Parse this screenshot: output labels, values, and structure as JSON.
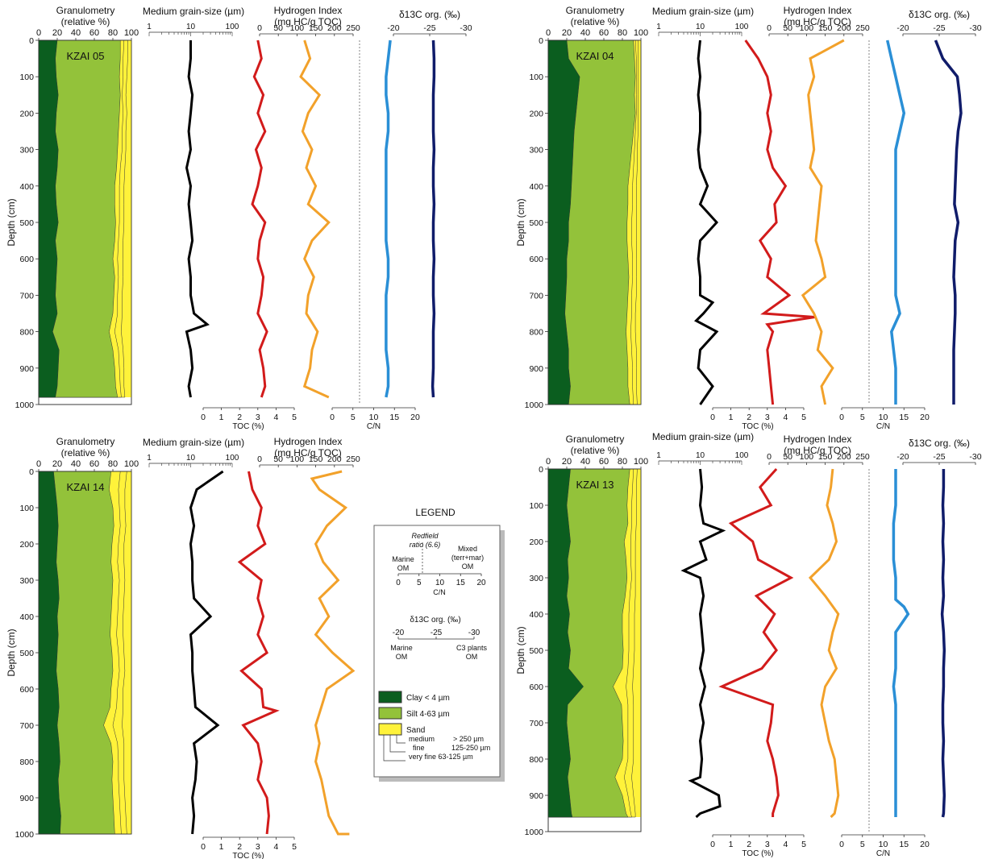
{
  "colors": {
    "clay": "#0b5e1f",
    "silt": "#93c23a",
    "sand": "#fff23a",
    "grain": "#000000",
    "toc": "#d21b1b",
    "hi": "#f2a12a",
    "cn": "#2a8fd6",
    "d13c": "#101c6a"
  },
  "labels": {
    "gran_title": "Granulometry",
    "gran_sub": "(relative %)",
    "grain_title": "Medium grain-size (µm)",
    "hi_title": "Hydrogen Index",
    "hi_sub": "(mg  HC/g  TOC)",
    "d13c_title": "δ13C org. (‰)",
    "toc_axis": "TOC (%)",
    "cn_axis": "C/N",
    "depth_axis": "Depth (cm)"
  },
  "legend": {
    "title": "LEGEND",
    "redfield": "Redfield",
    "redfield_ratio": "ratio (6.6)",
    "marine_om": "Marine",
    "om": "OM",
    "mixed": "Mixed",
    "terr_mar": "(terr+mar)",
    "om2": "OM",
    "cn_label": "C/N",
    "d13c_title": "δ13C org. (‰)",
    "marine2": "Marine",
    "om3": "OM",
    "c3": "C3 plants",
    "om4": "OM",
    "clay": "Clay < 4 µm",
    "silt": "Silt 4-63 µm",
    "sand": "Sand",
    "medium": "medium",
    "medium_range": "> 250 µm",
    "fine": "fine",
    "fine_range": "125-250 µm",
    "veryfine": "very fine 63-125 µm"
  },
  "chart_data": [
    {
      "core": "KZAI 05",
      "type": "line",
      "depth_range": [
        0,
        1000
      ],
      "core_bottom": 980,
      "depth": [
        0,
        50,
        100,
        150,
        200,
        250,
        300,
        350,
        400,
        450,
        500,
        550,
        600,
        650,
        700,
        750,
        800,
        850,
        900,
        950,
        980
      ],
      "clay": [
        20,
        18,
        19,
        21,
        19,
        18,
        21,
        20,
        18,
        19,
        21,
        18,
        20,
        19,
        18,
        20,
        15,
        22,
        21,
        20,
        18
      ],
      "silt_top": [
        88,
        88,
        87,
        88,
        87,
        86,
        85,
        84,
        82,
        82,
        83,
        82,
        80,
        82,
        81,
        80,
        76,
        80,
        82,
        83,
        85
      ],
      "fine_top": [
        92,
        91,
        91,
        90,
        91,
        90,
        90,
        88,
        87,
        87,
        87,
        86,
        85,
        86,
        85,
        85,
        82,
        86,
        87,
        88,
        89
      ],
      "veryfine_top": [
        96,
        96,
        95,
        94,
        95,
        94,
        94,
        93,
        92,
        92,
        92,
        91,
        91,
        91,
        90,
        90,
        89,
        91,
        92,
        92,
        93
      ],
      "grain": [
        10,
        10,
        9,
        11,
        10,
        9,
        10,
        8,
        10,
        9,
        10,
        11,
        9,
        10,
        10,
        12,
        8,
        10,
        11,
        9,
        10
      ],
      "grain_extra": [
        [
          780,
          25
        ]
      ],
      "toc": [
        3.0,
        3.2,
        2.8,
        3.3,
        3.0,
        3.4,
        2.9,
        3.2,
        3.0,
        2.7,
        3.4,
        3.1,
        3.0,
        3.3,
        3.2,
        3.0,
        3.5,
        3.1,
        3.3,
        3.4,
        3.2
      ],
      "hi": [
        120,
        135,
        110,
        160,
        130,
        115,
        140,
        125,
        150,
        130,
        185,
        140,
        120,
        145,
        130,
        125,
        155,
        140,
        135,
        120,
        185
      ],
      "cn": [
        14,
        13.5,
        13,
        13,
        13.5,
        13.5,
        13,
        13,
        13,
        13,
        13,
        13,
        13.5,
        13.5,
        13,
        13,
        13,
        13,
        13.5,
        13.5,
        13
      ],
      "d13c": [
        -25.5,
        -25.6,
        -25.6,
        -25.5,
        -25.5,
        -25.5,
        -25.6,
        -25.5,
        -25.5,
        -25.6,
        -25.5,
        -25.5,
        -25.6,
        -25.5,
        -25.5,
        -25.6,
        -25.5,
        -25.5,
        -25.5,
        -25.4,
        -25.5
      ]
    },
    {
      "core": "KZAI 04",
      "type": "line",
      "depth_range": [
        0,
        1000
      ],
      "core_bottom": 1000,
      "depth": [
        0,
        50,
        100,
        150,
        200,
        250,
        300,
        350,
        400,
        450,
        500,
        550,
        600,
        650,
        700,
        750,
        800,
        850,
        900,
        950,
        1000
      ],
      "clay": [
        20,
        22,
        34,
        32,
        30,
        28,
        27,
        26,
        25,
        24,
        22,
        22,
        20,
        20,
        19,
        18,
        20,
        22,
        22,
        24,
        22
      ],
      "silt_top": [
        92,
        93,
        94,
        93,
        94,
        92,
        90,
        88,
        86,
        86,
        85,
        85,
        86,
        87,
        86,
        85,
        84,
        85,
        86,
        86,
        88
      ],
      "fine_top": [
        94,
        95,
        95,
        95,
        95,
        94,
        93,
        92,
        91,
        91,
        90,
        90,
        91,
        91,
        90,
        90,
        89,
        90,
        91,
        91,
        92
      ],
      "veryfine_top": [
        97,
        97,
        97,
        97,
        97,
        97,
        96,
        96,
        95,
        95,
        95,
        95,
        95,
        95,
        95,
        94,
        94,
        95,
        95,
        95,
        96
      ],
      "grain": [
        10,
        9,
        10,
        9,
        10,
        10,
        9,
        10,
        15,
        10,
        25,
        10,
        9,
        10,
        10,
        12,
        25,
        10,
        9,
        20,
        10
      ],
      "grain_extra": [
        [
          720,
          20
        ],
        [
          770,
          8
        ]
      ],
      "toc": [
        1.8,
        2.5,
        3.0,
        3.2,
        3.0,
        3.2,
        3.0,
        3.3,
        4.0,
        3.4,
        3.5,
        2.6,
        3.2,
        3.0,
        4.2,
        2.8,
        3.3,
        3.0,
        3.1,
        3.2,
        3.3
      ],
      "toc_extra": [
        [
          760,
          5.6
        ],
        [
          780,
          3.0
        ]
      ],
      "hi": [
        200,
        110,
        120,
        105,
        110,
        115,
        120,
        110,
        140,
        135,
        130,
        125,
        140,
        150,
        90,
        120,
        140,
        130,
        170,
        140,
        150
      ],
      "cn": [
        11,
        12,
        13,
        14,
        15,
        14,
        13,
        13,
        13,
        13,
        13,
        13,
        13,
        13,
        13,
        14,
        12,
        12.5,
        13,
        13,
        13
      ],
      "d13c": [
        -24.5,
        -25.5,
        -27.5,
        -27.8,
        -28.0,
        -27.6,
        -27.4,
        -27.3,
        -27.2,
        -27.1,
        -27.6,
        -27.2,
        -27.1,
        -27.0,
        -27.2,
        -27.2,
        -27.1,
        -27.0,
        -27.0,
        -27.0,
        -27.0
      ]
    },
    {
      "core": "KZAI 14",
      "type": "line",
      "depth_range": [
        0,
        1000
      ],
      "core_bottom": 1000,
      "depth": [
        0,
        50,
        100,
        150,
        200,
        250,
        300,
        350,
        400,
        450,
        500,
        550,
        600,
        650,
        700,
        750,
        800,
        850,
        900,
        950,
        1000
      ],
      "clay": [
        16,
        18,
        20,
        21,
        20,
        19,
        21,
        22,
        20,
        21,
        20,
        19,
        21,
        22,
        20,
        22,
        23,
        21,
        22,
        24,
        23
      ],
      "silt_top": [
        78,
        76,
        80,
        81,
        79,
        78,
        80,
        79,
        78,
        77,
        79,
        80,
        78,
        77,
        70,
        78,
        80,
        79,
        80,
        81,
        82
      ],
      "fine_top": [
        88,
        86,
        87,
        88,
        86,
        85,
        87,
        86,
        85,
        84,
        86,
        87,
        85,
        84,
        80,
        85,
        86,
        86,
        87,
        88,
        89
      ],
      "veryfine_top": [
        95,
        93,
        93,
        94,
        92,
        92,
        93,
        92,
        91,
        91,
        92,
        93,
        91,
        91,
        90,
        92,
        92,
        92,
        93,
        94,
        95
      ],
      "grain": [
        60,
        14,
        10,
        12,
        10,
        11,
        11,
        12,
        30,
        10,
        11,
        11,
        12,
        13,
        45,
        12,
        14,
        13,
        11,
        12,
        11
      ],
      "toc": [
        2.5,
        2.7,
        3.2,
        3.0,
        3.4,
        2.0,
        3.2,
        3.0,
        3.3,
        3.0,
        3.5,
        2.1,
        3.2,
        3.3,
        2.2,
        3.0,
        3.2,
        3.0,
        3.5,
        3.6,
        3.5
      ],
      "toc_extra": [
        [
          660,
          4.0
        ]
      ],
      "hi": [
        220,
        160,
        230,
        180,
        150,
        170,
        210,
        160,
        185,
        150,
        195,
        250,
        180,
        165,
        150,
        160,
        150,
        165,
        175,
        185,
        210
      ],
      "hi_extra": [
        [
          20,
          140
        ],
        [
          1000,
          240
        ]
      ]
    },
    {
      "core": "KZAI 13",
      "type": "line",
      "depth_range": [
        0,
        1000
      ],
      "core_bottom": 960,
      "depth": [
        0,
        50,
        100,
        150,
        200,
        250,
        300,
        350,
        400,
        450,
        500,
        550,
        600,
        650,
        700,
        750,
        800,
        850,
        900,
        950,
        960
      ],
      "clay": [
        24,
        22,
        20,
        22,
        24,
        21,
        22,
        20,
        23,
        21,
        24,
        22,
        38,
        21,
        20,
        22,
        24,
        21,
        23,
        25,
        26
      ],
      "silt_top": [
        88,
        86,
        85,
        86,
        82,
        84,
        85,
        83,
        80,
        80,
        81,
        80,
        70,
        79,
        80,
        81,
        80,
        72,
        80,
        84,
        86
      ],
      "fine_top": [
        92,
        91,
        90,
        90,
        89,
        89,
        90,
        88,
        87,
        87,
        87,
        86,
        84,
        86,
        86,
        86,
        86,
        82,
        86,
        89,
        90
      ],
      "veryfine_top": [
        96,
        95,
        95,
        95,
        94,
        94,
        94,
        94,
        93,
        93,
        93,
        92,
        91,
        92,
        92,
        92,
        92,
        90,
        92,
        94,
        94
      ],
      "grain": [
        10,
        11,
        10,
        12,
        10,
        14,
        10,
        12,
        10,
        11,
        12,
        10,
        13,
        10,
        12,
        10,
        11,
        10,
        28,
        10,
        8
      ],
      "grain_extra": [
        [
          170,
          35
        ],
        [
          280,
          4
        ],
        [
          860,
          6
        ],
        [
          930,
          30
        ]
      ],
      "toc": [
        3.5,
        2.6,
        3.2,
        1.0,
        2.2,
        2.5,
        4.3,
        2.4,
        3.4,
        2.8,
        3.5,
        2.7,
        0.5,
        3.3,
        3.2,
        3.0,
        3.3,
        3.5,
        3.6,
        3.3,
        3.3
      ],
      "hi": [
        170,
        165,
        155,
        170,
        180,
        160,
        110,
        150,
        185,
        170,
        160,
        180,
        150,
        140,
        150,
        160,
        175,
        180,
        185,
        175,
        165
      ],
      "cn": [
        13,
        13,
        13,
        12.5,
        12.5,
        12.5,
        13,
        13,
        16,
        13,
        13,
        13,
        12.5,
        13,
        13,
        13,
        13,
        13,
        13,
        13,
        13
      ],
      "cn_extra": [
        [
          360,
          13
        ],
        [
          380,
          15
        ]
      ],
      "d13c": [
        -25.6,
        -25.6,
        -25.5,
        -25.6,
        -25.5,
        -25.6,
        -25.5,
        -25.6,
        -25.4,
        -25.6,
        -25.7,
        -25.6,
        -25.6,
        -25.5,
        -25.5,
        -25.6,
        -25.5,
        -25.6,
        -25.7,
        -25.6,
        -25.5
      ]
    }
  ]
}
